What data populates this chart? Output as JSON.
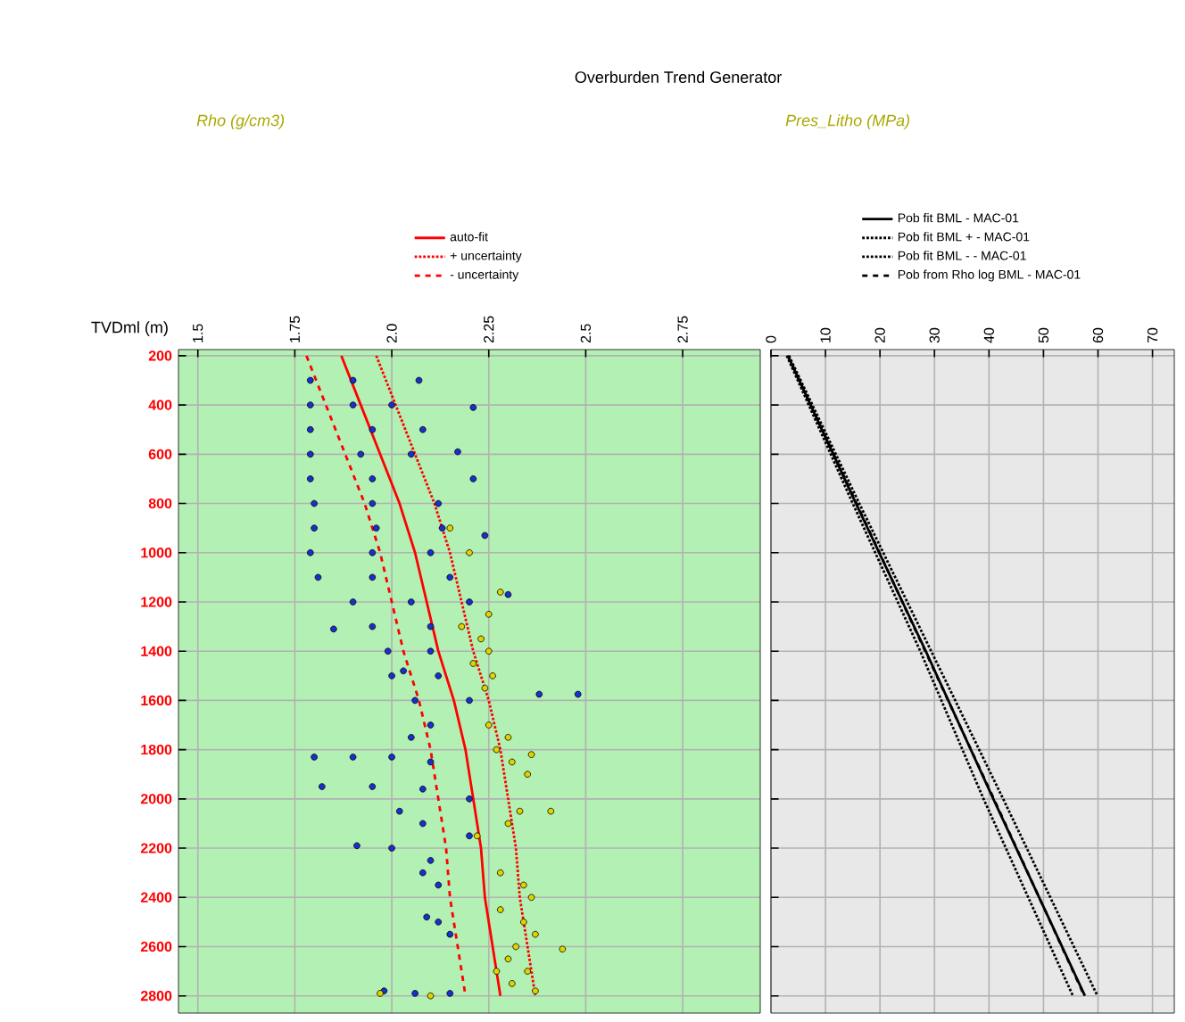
{
  "chart_data": [
    {
      "type": "scatter",
      "title": "Overburden Trend Generator",
      "xlabel": "Rho (g/cm3)",
      "ylabel": "TVDml (m)",
      "xlim": [
        1.45,
        2.95
      ],
      "ylim": [
        2870,
        175
      ],
      "xticks": [
        1.5,
        1.75,
        {
          "value": 2.0,
          "label": "2.0"
        },
        2.25,
        2.5,
        2.75
      ],
      "yticks": [
        200,
        400,
        600,
        800,
        1000,
        1200,
        1400,
        1600,
        1800,
        2000,
        2200,
        2400,
        2600,
        2800
      ],
      "grid": true,
      "legend": "top",
      "series": [
        {
          "type": "scatter",
          "marker": "circle",
          "color": "#1a2fd0",
          "x": [
            1.79,
            1.9,
            2.07,
            1.79,
            1.9,
            2.0,
            2.21,
            1.79,
            1.95,
            2.08,
            1.79,
            1.92,
            2.05,
            2.17,
            1.79,
            1.95,
            2.21,
            1.8,
            1.95,
            2.12,
            1.8,
            1.96,
            2.13,
            2.24,
            1.79,
            1.95,
            2.1,
            1.81,
            1.95,
            2.15,
            2.3,
            1.9,
            2.05,
            2.2,
            1.85,
            1.95,
            2.1,
            1.99,
            2.1,
            2.0,
            2.12,
            2.03,
            2.06,
            2.2,
            2.38,
            2.48,
            2.1,
            2.05,
            1.8,
            1.9,
            2.0,
            2.1,
            1.82,
            1.95,
            2.08,
            2.2,
            2.02,
            2.08,
            2.2,
            1.91,
            2.0,
            2.1,
            2.08,
            2.12,
            2.09,
            2.12,
            2.15,
            1.98,
            2.06,
            2.15
          ],
          "values": [
            300,
            300,
            300,
            400,
            400,
            400,
            410,
            500,
            500,
            500,
            600,
            600,
            600,
            590,
            700,
            700,
            700,
            800,
            800,
            800,
            900,
            900,
            900,
            930,
            1000,
            1000,
            1000,
            1100,
            1100,
            1100,
            1170,
            1200,
            1200,
            1200,
            1310,
            1300,
            1300,
            1400,
            1400,
            1500,
            1500,
            1480,
            1600,
            1600,
            1575,
            1575,
            1700,
            1750,
            1830,
            1830,
            1830,
            1850,
            1950,
            1950,
            1960,
            2000,
            2050,
            2100,
            2150,
            2190,
            2200,
            2250,
            2300,
            2350,
            2480,
            2500,
            2550,
            2780,
            2790,
            2790
          ]
        },
        {
          "type": "scatter",
          "marker": "circle",
          "color": "#e0d400",
          "x": [
            2.15,
            2.2,
            2.28,
            2.18,
            2.23,
            2.25,
            2.21,
            2.26,
            2.24,
            2.25,
            2.3,
            2.27,
            2.36,
            2.31,
            2.35,
            2.33,
            2.41,
            2.3,
            2.28,
            2.34,
            2.36,
            2.28,
            2.34,
            2.37,
            2.32,
            2.44,
            2.3,
            2.35,
            2.31,
            2.37,
            1.97,
            2.1,
            2.27,
            2.25,
            2.22
          ],
          "values": [
            900,
            1000,
            1160,
            1300,
            1350,
            1400,
            1450,
            1500,
            1550,
            1700,
            1750,
            1800,
            1820,
            1850,
            1900,
            2050,
            2050,
            2100,
            2300,
            2350,
            2400,
            2450,
            2500,
            2550,
            2600,
            2610,
            2650,
            2700,
            2750,
            2780,
            2790,
            2800,
            2700,
            1250,
            2150
          ]
        },
        {
          "type": "line",
          "name": "auto-fit",
          "color": "#ff0000",
          "line_style": "solid",
          "x": [
            1.87,
            1.92,
            1.97,
            2.02,
            2.06,
            2.09,
            2.12,
            2.16,
            2.19,
            2.21,
            2.23,
            2.24,
            2.26,
            2.28
          ],
          "values": [
            200,
            400,
            600,
            800,
            1000,
            1200,
            1400,
            1600,
            1800,
            2000,
            2200,
            2400,
            2600,
            2800
          ]
        },
        {
          "type": "line",
          "name": "+ uncertainty",
          "color": "#ff0000",
          "line_style": "dotted",
          "x": [
            1.96,
            2.01,
            2.06,
            2.11,
            2.15,
            2.18,
            2.21,
            2.25,
            2.28,
            2.3,
            2.32,
            2.33,
            2.35,
            2.37
          ],
          "values": [
            200,
            400,
            600,
            800,
            1000,
            1200,
            1400,
            1600,
            1800,
            2000,
            2200,
            2400,
            2600,
            2800
          ]
        },
        {
          "type": "line",
          "name": "- uncertainty",
          "color": "#ff0000",
          "line_style": "dashed",
          "x": [
            1.78,
            1.83,
            1.88,
            1.93,
            1.97,
            2.0,
            2.03,
            2.07,
            2.1,
            2.12,
            2.14,
            2.15,
            2.17,
            2.19
          ],
          "values": [
            200,
            400,
            600,
            800,
            1000,
            1200,
            1400,
            1600,
            1800,
            2000,
            2200,
            2400,
            2600,
            2800
          ]
        }
      ]
    },
    {
      "type": "line",
      "xlabel": "Pres_Litho (MPa)",
      "xlim": [
        0,
        74
      ],
      "ylim": [
        2870,
        175
      ],
      "xticks": [
        0,
        10,
        20,
        30,
        40,
        50,
        60,
        70
      ],
      "yticks": [
        200,
        400,
        600,
        800,
        1000,
        1200,
        1400,
        1600,
        1800,
        2000,
        2200,
        2400,
        2600,
        2800
      ],
      "tick_labels": "x",
      "grid": true,
      "legend": "top",
      "series": [
        {
          "name": "Pob fit BML - MAC-01",
          "color": "#000000",
          "line_style": "solid",
          "x": [
            3.1,
            15.6,
            28.4,
            40.8,
            57.6
          ],
          "values": [
            200,
            800,
            1400,
            2000,
            2800
          ]
        },
        {
          "name": "Pob fit BML + - MAC-01",
          "color": "#000000",
          "line_style": "dotted",
          "x": [
            3.3,
            16.2,
            29.4,
            42.6,
            59.9
          ],
          "values": [
            200,
            800,
            1400,
            2000,
            2800
          ]
        },
        {
          "name": "Pob fit BML - - MAC-01",
          "color": "#000000",
          "line_style": "dotted",
          "x": [
            2.9,
            15.0,
            27.4,
            39.0,
            55.4
          ],
          "values": [
            200,
            800,
            1400,
            2000,
            2800
          ]
        },
        {
          "name": "Pob from Rho log BML - MAC-01",
          "color": "#000000",
          "line_style": "dashed",
          "x": [
            3.1,
            15.7,
            28.3,
            40.9,
            57.5
          ],
          "values": [
            200,
            800,
            1400,
            2000,
            2800
          ]
        }
      ]
    }
  ]
}
